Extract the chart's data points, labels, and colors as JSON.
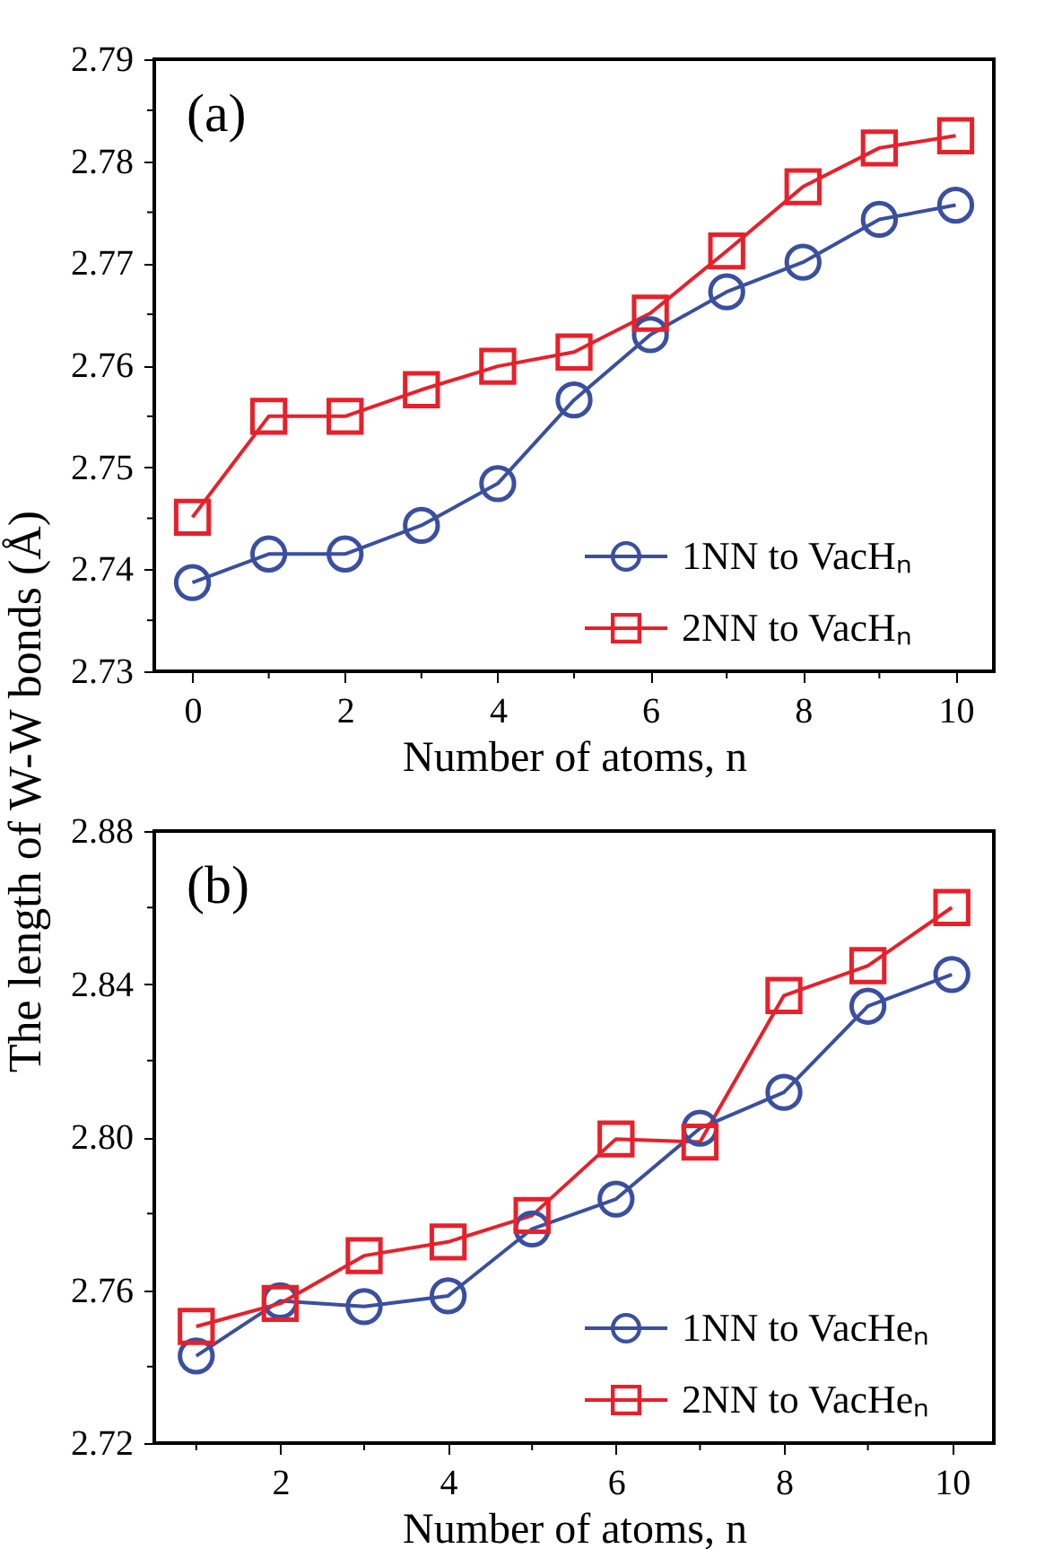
{
  "chart_data": [
    {
      "type": "line",
      "ylabel": "The length of W-W bonds (Å)",
      "xlabel": "Number of atoms, n",
      "annotations": [
        "(a)"
      ],
      "x": [
        0,
        1,
        2,
        3,
        4,
        5,
        6,
        7,
        8,
        9,
        10
      ],
      "xlim": [
        -0.5,
        10.5
      ],
      "xticks": [
        0,
        {
          "value": 1,
          "label": null
        },
        2,
        {
          "value": 3,
          "label": null
        },
        4,
        {
          "value": 5,
          "label": null
        },
        6,
        {
          "value": 7,
          "label": null
        },
        8,
        {
          "value": 9,
          "label": null
        },
        10
      ],
      "ylim": [
        2.73,
        2.79
      ],
      "yticks": [
        2.73,
        {
          "value": 2.735,
          "label": null
        },
        2.74,
        {
          "value": 2.745,
          "label": null
        },
        2.75,
        {
          "value": 2.755,
          "label": null
        },
        2.76,
        {
          "value": 2.765,
          "label": null
        },
        2.77,
        {
          "value": 2.775,
          "label": null
        },
        2.78,
        {
          "value": 2.785,
          "label": null
        },
        2.79
      ],
      "legend": "bottom right",
      "series": [
        {
          "name": "1NN to VacHₙ",
          "color": "#3a4fa0",
          "marker": "circle",
          "values": [
            2.7387,
            2.7415,
            2.7415,
            2.7443,
            2.7484,
            2.7566,
            2.763,
            2.7672,
            2.7701,
            2.7743,
            2.7757
          ]
        },
        {
          "name": "2NN to VacHₙ",
          "color": "#e8202a",
          "marker": "square",
          "values": [
            2.7451,
            2.755,
            2.755,
            2.7576,
            2.7599,
            2.7613,
            2.7651,
            2.7712,
            2.7775,
            2.7813,
            2.7825
          ]
        }
      ]
    },
    {
      "type": "line",
      "xlabel": "Number of atoms, n",
      "annotations": [
        "(b)"
      ],
      "x": [
        1,
        2,
        3,
        4,
        5,
        6,
        7,
        8,
        9,
        10
      ],
      "xlim": [
        0.5,
        10.5
      ],
      "xticks": [
        {
          "value": 1,
          "label": null
        },
        2,
        {
          "value": 3,
          "label": null
        },
        4,
        {
          "value": 5,
          "label": null
        },
        6,
        {
          "value": 7,
          "label": null
        },
        8,
        {
          "value": 9,
          "label": null
        },
        10
      ],
      "ylim": [
        2.72,
        2.88
      ],
      "yticks": [
        2.72,
        {
          "value": 2.74,
          "label": null
        },
        2.76,
        {
          "value": 2.78,
          "label": null
        },
        {
          "value": 2.8,
          "label": "2.80"
        },
        {
          "value": 2.82,
          "label": null
        },
        2.84,
        {
          "value": 2.86,
          "label": null
        },
        2.88
      ],
      "legend": "bottom right",
      "series": [
        {
          "name": "1NN to VacHeₙ",
          "color": "#3a4fa0",
          "marker": "circle",
          "values": [
            2.7428,
            2.7572,
            2.7557,
            2.7585,
            2.776,
            2.7838,
            2.8023,
            2.8117,
            2.8342,
            2.8425
          ]
        },
        {
          "name": "2NN to VacHeₙ",
          "color": "#e8202a",
          "marker": "square",
          "values": [
            2.7505,
            2.7565,
            2.769,
            2.7726,
            2.7795,
            2.7995,
            2.7987,
            2.837,
            2.8448,
            2.86
          ]
        }
      ]
    }
  ]
}
